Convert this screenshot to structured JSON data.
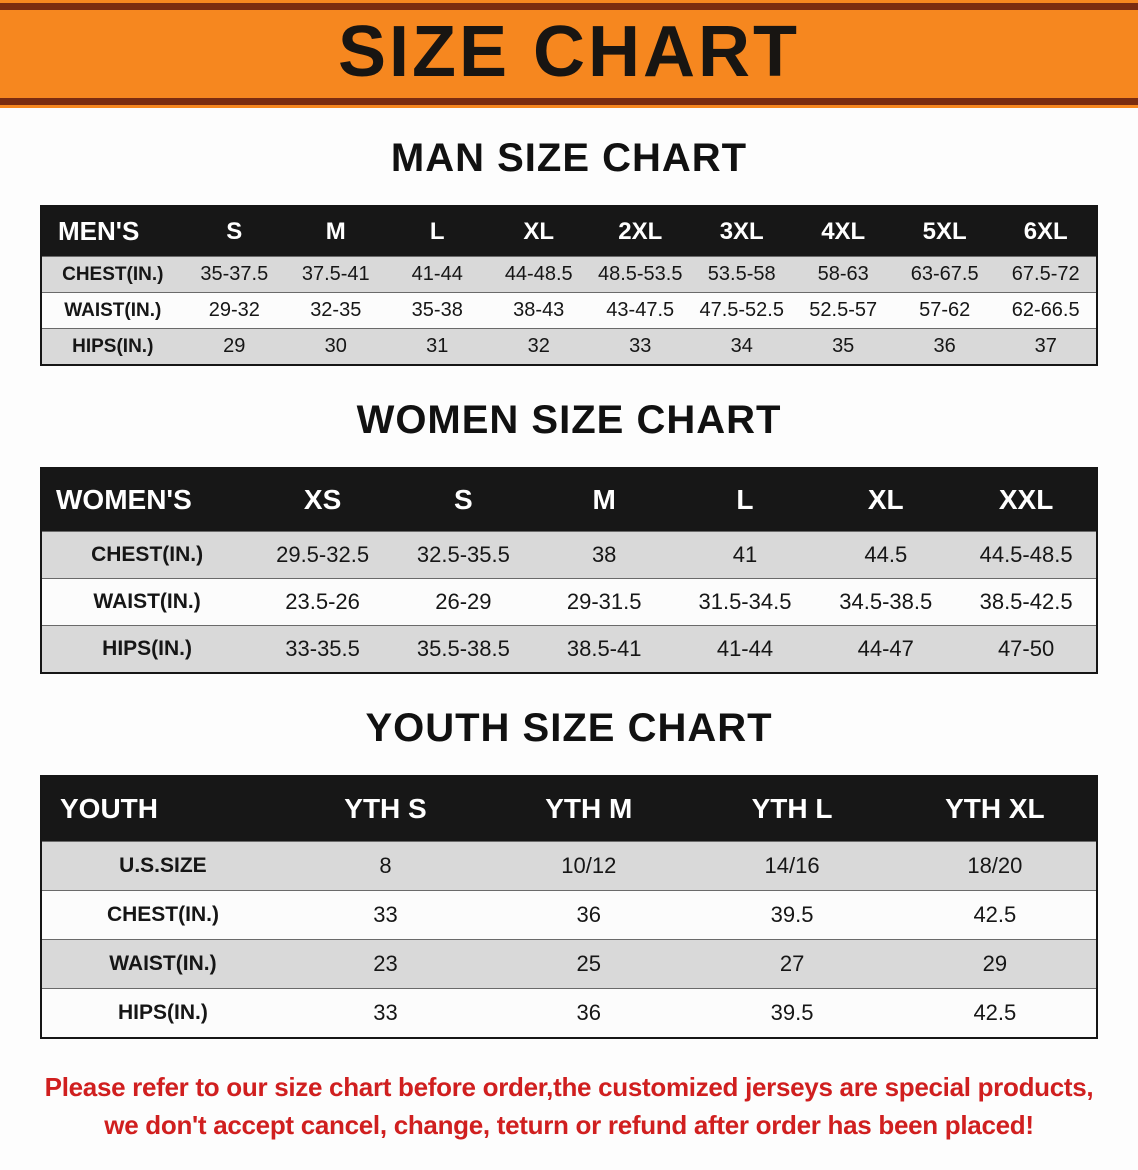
{
  "banner": {
    "title": "SIZE CHART"
  },
  "colors": {
    "banner_bg": "#f6871f",
    "banner_stripe": "#7a2c10",
    "table_header_bg": "#171717",
    "row_alt_bg": "#d9d9d9",
    "footer_text": "#d01f1f"
  },
  "men": {
    "heading": "MAN SIZE CHART",
    "table": {
      "header": [
        "MEN'S",
        "S",
        "M",
        "L",
        "XL",
        "2XL",
        "3XL",
        "4XL",
        "5XL",
        "6XL"
      ],
      "rows": [
        [
          "CHEST(IN.)",
          "35-37.5",
          "37.5-41",
          "41-44",
          "44-48.5",
          "48.5-53.5",
          "53.5-58",
          "58-63",
          "63-67.5",
          "67.5-72"
        ],
        [
          "WAIST(IN.)",
          "29-32",
          "32-35",
          "35-38",
          "38-43",
          "43-47.5",
          "47.5-52.5",
          "52.5-57",
          "57-62",
          "62-66.5"
        ],
        [
          "HIPS(IN.)",
          "29",
          "30",
          "31",
          "32",
          "33",
          "34",
          "35",
          "36",
          "37"
        ]
      ]
    }
  },
  "women": {
    "heading": "WOMEN SIZE CHART",
    "table": {
      "header": [
        "WOMEN'S",
        "XS",
        "S",
        "M",
        "L",
        "XL",
        "XXL"
      ],
      "rows": [
        [
          "CHEST(IN.)",
          "29.5-32.5",
          "32.5-35.5",
          "38",
          "41",
          "44.5",
          "44.5-48.5"
        ],
        [
          "WAIST(IN.)",
          "23.5-26",
          "26-29",
          "29-31.5",
          "31.5-34.5",
          "34.5-38.5",
          "38.5-42.5"
        ],
        [
          "HIPS(IN.)",
          "33-35.5",
          "35.5-38.5",
          "38.5-41",
          "41-44",
          "44-47",
          "47-50"
        ]
      ]
    }
  },
  "youth": {
    "heading": "YOUTH SIZE CHART",
    "table": {
      "header": [
        "YOUTH",
        "YTH S",
        "YTH M",
        "YTH L",
        "YTH XL"
      ],
      "rows": [
        [
          "U.S.SIZE",
          "8",
          "10/12",
          "14/16",
          "18/20"
        ],
        [
          "CHEST(IN.)",
          "33",
          "36",
          "39.5",
          "42.5"
        ],
        [
          "WAIST(IN.)",
          "23",
          "25",
          "27",
          "29"
        ],
        [
          "HIPS(IN.)",
          "33",
          "36",
          "39.5",
          "42.5"
        ]
      ]
    }
  },
  "footer": {
    "line1": "Please refer to our size chart before order,the customized jerseys are special products,",
    "line2": "we don't accept cancel, change, teturn or refund after order has been placed!"
  }
}
